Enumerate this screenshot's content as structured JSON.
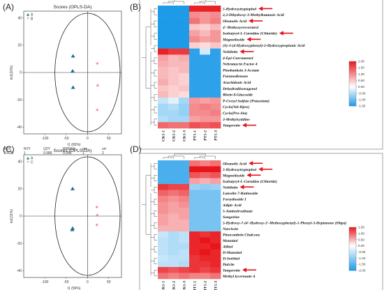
{
  "panel_labels": [
    "(A)",
    "(B)",
    "(C)",
    "(D)"
  ],
  "chart_data": [
    {
      "type": "scatter",
      "panel": "(A)",
      "title": "Scores (OPLS-DA)",
      "xlabel": "t1 (65%)",
      "ylabel": "to1(10%)",
      "xlim": [
        -150,
        80
      ],
      "ylim": [
        -45,
        45
      ],
      "x_ticks": [
        -100,
        -50,
        0,
        50
      ],
      "y_ticks": [
        -40,
        -20,
        0,
        20,
        40
      ],
      "legend": [
        "A",
        "B"
      ],
      "series": [
        {
          "name": "A",
          "marker": "triangle",
          "color": "#1f6f8b",
          "points": [
            [
              -34,
              12
            ],
            [
              -35,
              1
            ],
            [
              -34,
              -11
            ]
          ]
        },
        {
          "name": "B",
          "marker": "star",
          "color": "#e8554e",
          "points": [
            [
              23,
              6
            ],
            [
              24,
              -10
            ],
            [
              23,
              -28
            ]
          ]
        }
      ],
      "metrics": {
        "labels": [
          "R2X",
          "R2Y",
          "Q2Y",
          "RMSEE",
          "pre",
          "ort"
        ],
        "values": [
          "0.828",
          "1",
          "0.986",
          "0.055",
          "1",
          "2"
        ]
      }
    },
    {
      "type": "scatter",
      "panel": "(C)",
      "title": "Scores (OPLS-DA)",
      "xlabel": "t1 (59%)",
      "ylabel": "to1(11%)",
      "xlim": [
        -150,
        80
      ],
      "ylim": [
        -45,
        45
      ],
      "x_ticks": [
        -100,
        -50,
        0,
        50
      ],
      "y_ticks": [
        -40,
        -20,
        0,
        20,
        40
      ],
      "legend": [
        "A",
        "C"
      ],
      "series": [
        {
          "name": "A",
          "marker": "triangle",
          "color": "#1f6f8b",
          "points": [
            [
              -35,
              20
            ],
            [
              -35,
              -9
            ],
            [
              -36,
              -10
            ]
          ]
        },
        {
          "name": "C",
          "marker": "star",
          "color": "#e8554e",
          "points": [
            [
              22,
              6
            ],
            [
              23,
              0
            ],
            [
              22,
              -7
            ]
          ]
        }
      ],
      "metrics": {
        "labels": [
          "R2X",
          "R2Y",
          "Q2Y",
          "RMSEE",
          "pre",
          "ort"
        ],
        "values": [
          "0.799",
          "1",
          "0.982",
          "0.102",
          "1",
          "2"
        ]
      }
    },
    {
      "type": "heatmap",
      "panel": "(B)",
      "columns": [
        "CK1-1",
        "CK1-2",
        "CK1-3",
        "PT1-1",
        "PT1-2",
        "PT1-3"
      ],
      "rows": [
        "5-Hydroxytryptophol",
        "2,3-Dihydroxy-3-Methylbutanoic Acid",
        "Oleanolic Acid",
        "4'-Methoxyresveratrol",
        "Isobutyryl-L-Carnitine (Chloride)",
        "Magnolioside",
        "(S)-3-(4-Hydroxyphenyl)-2-Hydroxypropionic Acid",
        "Nobiletin",
        "4-Epi-Curcumenol",
        "Nebramycin Factor 4",
        "Pinobanksin 3-Acetate",
        "Furanodienone",
        "Arachidonic Acid",
        "Dehydrodiisoeugenol",
        "Rhein 8-Glucoside",
        "P-Cresyl Sulfate (Potassium)",
        "Cyclo(Val-Hpro)",
        "Cyclo(Pro-Ala)",
        "3-Methylcytidine",
        "Tangeretin"
      ],
      "highlighted": [
        "5-Hydroxytryptophol",
        "Oleanolic Acid",
        "Isobutyryl-L-Carnitine (Chloride)",
        "Magnolioside",
        "Nobiletin",
        "Tangeretin"
      ],
      "values": [
        [
          -1.6,
          -1.6,
          -1.6,
          1.9,
          1.9,
          1.9
        ],
        [
          -1.6,
          -1.6,
          -1.6,
          1.0,
          0.9,
          1.0
        ],
        [
          -1.6,
          -1.6,
          -1.6,
          1.2,
          0.9,
          1.1
        ],
        [
          -1.6,
          -1.6,
          -1.6,
          0.5,
          0.4,
          0.6
        ],
        [
          -1.6,
          -1.6,
          -1.6,
          0.8,
          0.6,
          0.9
        ],
        [
          -1.6,
          -1.6,
          -1.6,
          1.0,
          0.8,
          0.9
        ],
        [
          -1.6,
          -1.6,
          -1.6,
          0.4,
          0.3,
          0.5
        ],
        [
          1.9,
          1.7,
          1.7,
          -1.4,
          -0.3,
          -1.4
        ],
        [
          0.8,
          0.6,
          0.7,
          -1.4,
          -1.4,
          -1.4
        ],
        [
          0.7,
          0.6,
          0.6,
          -1.4,
          -1.4,
          -1.4
        ],
        [
          0.6,
          0.5,
          0.6,
          -1.4,
          -1.4,
          -1.4
        ],
        [
          0.6,
          0.5,
          0.4,
          -1.4,
          -1.4,
          -1.4
        ],
        [
          0.7,
          0.5,
          0.4,
          -1.4,
          -1.4,
          -1.4
        ],
        [
          0.5,
          0.4,
          0.5,
          -1.4,
          -1.4,
          -1.4
        ],
        [
          0.6,
          0.4,
          0.3,
          -1.4,
          -1.4,
          -1.4
        ],
        [
          -0.4,
          -0.2,
          -0.6,
          0.9,
          0.8,
          0.9
        ],
        [
          -0.6,
          -0.5,
          -0.7,
          1.0,
          1.1,
          1.0
        ],
        [
          -0.6,
          -0.6,
          -0.7,
          1.0,
          1.0,
          1.1
        ],
        [
          -0.5,
          -0.6,
          -0.6,
          0.8,
          0.9,
          0.9
        ],
        [
          1.3,
          1.2,
          1.2,
          1.5,
          1.4,
          1.5
        ]
      ],
      "color_range": [
        -1.5,
        2.0
      ],
      "colorbar_ticks": [
        "2.00",
        "1.50",
        "1.00",
        "0.50",
        "0.00",
        "-0.50",
        "-1.00",
        "-1.50"
      ],
      "colors": {
        "low": "#1e9be8",
        "mid": "#ffffff",
        "high": "#e8161b"
      }
    },
    {
      "type": "heatmap",
      "panel": "(D)",
      "columns": [
        "CK1-1",
        "CK1-2",
        "CK1-3",
        "IT1-1",
        "IT1-2",
        "IT1-3"
      ],
      "rows": [
        "Oleanolic Acid",
        "5-Hydroxytryptophol",
        "Magnolioside",
        "Isobutyryl-L-Carnitine (Chloride)",
        "Nobiletin",
        "Luteolin 7-Rutinoside",
        "Forsythoside I",
        "Adipic Acid",
        "5-Aminolevulinate",
        "Songorine",
        "5-Hydroxy-7-(4'-Hydroxy-3'-Methoxyphenyl)-1-Phenyl-3-Heptanone (Dhpa)",
        "Narcissin",
        "Pinocembrin Chalcone",
        "Mannitol",
        "Allitol",
        "D-Mannitol",
        "D-Sorbitol",
        "Dulcite",
        "Tangeretin",
        "Methyl lycernuate A"
      ],
      "highlighted": [
        "Oleanolic Acid",
        "5-Hydroxytryptophol",
        "Magnolioside",
        "Nobiletin",
        "Tangeretin"
      ],
      "values": [
        [
          -1.6,
          -1.6,
          -1.6,
          0.9,
          0.8,
          0.9
        ],
        [
          -1.6,
          -1.6,
          -1.6,
          1.5,
          1.5,
          1.5
        ],
        [
          -1.6,
          -1.6,
          -1.6,
          1.1,
          1.0,
          1.1
        ],
        [
          -1.6,
          -1.6,
          -1.6,
          0.6,
          0.5,
          0.6
        ],
        [
          1.3,
          1.2,
          1.2,
          -0.9,
          -1.0,
          -0.9
        ],
        [
          1.0,
          0.9,
          1.0,
          -1.2,
          -1.2,
          -1.2
        ],
        [
          0.8,
          0.7,
          0.8,
          -1.2,
          -1.2,
          -1.2
        ],
        [
          0.7,
          0.6,
          0.7,
          -1.2,
          -1.2,
          -1.2
        ],
        [
          0.7,
          0.6,
          0.6,
          -1.2,
          -1.2,
          -1.2
        ],
        [
          0.6,
          0.5,
          0.6,
          -1.2,
          -1.2,
          -1.2
        ],
        [
          0.6,
          0.5,
          0.5,
          -1.2,
          -1.2,
          -1.2
        ],
        [
          0.5,
          0.5,
          0.5,
          -1.2,
          -1.2,
          -1.2
        ],
        [
          -0.5,
          -0.7,
          -0.6,
          1.4,
          1.3,
          1.4
        ],
        [
          -0.6,
          -0.7,
          -0.6,
          1.4,
          1.5,
          1.4
        ],
        [
          -0.6,
          -0.7,
          -0.7,
          1.4,
          1.4,
          1.5
        ],
        [
          -0.6,
          -0.7,
          -0.6,
          1.4,
          1.5,
          1.4
        ],
        [
          -0.5,
          -0.6,
          -0.6,
          1.3,
          1.4,
          1.4
        ],
        [
          -0.6,
          -0.6,
          -0.7,
          1.3,
          1.3,
          1.4
        ],
        [
          1.2,
          1.1,
          1.2,
          1.3,
          1.2,
          1.3
        ],
        [
          0.9,
          0.8,
          0.9,
          0.8,
          0.8,
          0.9
        ]
      ],
      "color_range": [
        -2.0,
        1.5
      ],
      "colorbar_ticks": [
        "1.50",
        "1.00",
        "0.50",
        "0.00",
        "-0.50",
        "-1.00",
        "-1.50",
        "-2.00"
      ],
      "colors": {
        "low": "#1e9be8",
        "mid": "#ffffff",
        "high": "#e8161b"
      }
    }
  ],
  "colors": {
    "arrow": "#e3141b",
    "triangle": "#1f6f8b",
    "star": "#e8554e"
  }
}
